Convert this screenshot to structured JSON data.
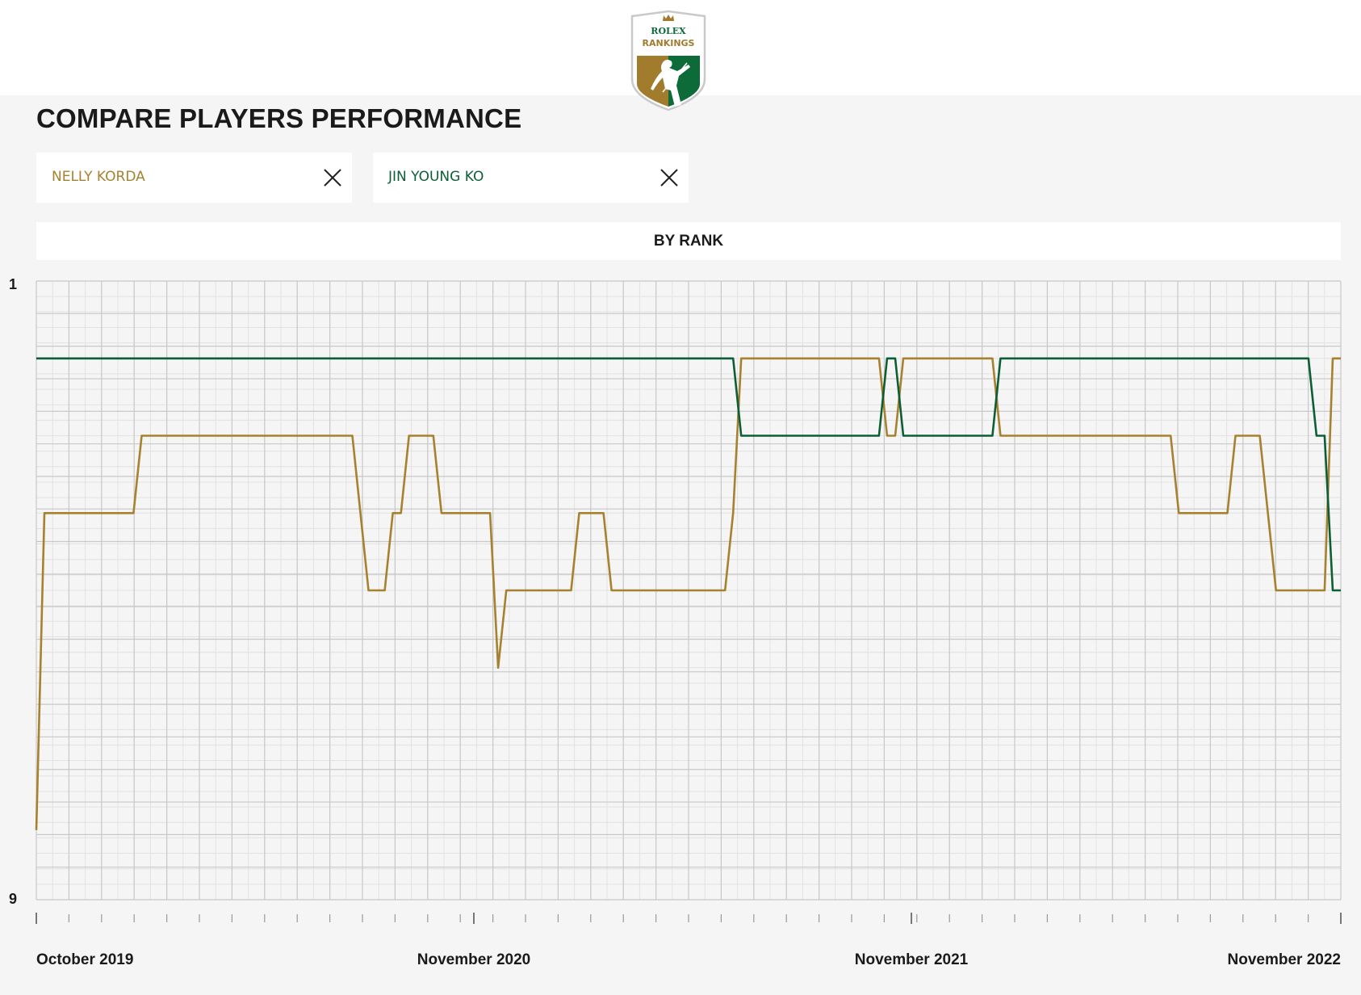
{
  "header": {
    "logo": {
      "top_text": "ROLEX",
      "bottom_text": "RANKINGS",
      "icon": "golfer-shield-icon",
      "colors": {
        "gold": "#a17c2c",
        "green": "#0d6b3a"
      }
    }
  },
  "page": {
    "title": "COMPARE PLAYERS PERFORMANCE"
  },
  "players": [
    {
      "name": "NELLY KORDA",
      "color": "#a6812f",
      "remove_icon": "close-icon"
    },
    {
      "name": "JIN YOUNG KO",
      "color": "#0d5e34",
      "remove_icon": "close-icon"
    }
  ],
  "mode": {
    "label": "BY RANK"
  },
  "chart_data": {
    "type": "line",
    "xlim": [
      "2019-10-21",
      "2022-11-21"
    ],
    "ylim": [
      9,
      1
    ],
    "y_inverted": true,
    "y_tick_labels": [
      "1",
      "9"
    ],
    "x_tick_labels": [
      {
        "date": "2019-10-21",
        "label": "October 2019"
      },
      {
        "date": "2020-11-02",
        "label": "November 2020"
      },
      {
        "date": "2021-11-15",
        "label": "November 2021"
      },
      {
        "date": "2022-11-21",
        "label": "November 2022"
      }
    ],
    "grid": true,
    "series": [
      {
        "name": "NELLY KORDA",
        "color": "#a6812f",
        "points": [
          [
            "2019-10-21",
            8.1
          ],
          [
            "2019-10-28",
            4
          ],
          [
            "2020-01-13",
            4
          ],
          [
            "2020-01-20",
            3
          ],
          [
            "2020-07-20",
            3
          ],
          [
            "2020-08-03",
            5
          ],
          [
            "2020-08-17",
            5
          ],
          [
            "2020-08-24",
            4
          ],
          [
            "2020-08-31",
            4
          ],
          [
            "2020-09-07",
            3
          ],
          [
            "2020-09-28",
            3
          ],
          [
            "2020-10-05",
            4
          ],
          [
            "2020-11-16",
            4
          ],
          [
            "2020-11-23",
            6
          ],
          [
            "2020-11-30",
            5
          ],
          [
            "2021-01-25",
            5
          ],
          [
            "2021-02-01",
            4
          ],
          [
            "2021-02-22",
            4
          ],
          [
            "2021-03-01",
            5
          ],
          [
            "2021-06-07",
            5
          ],
          [
            "2021-06-14",
            4
          ],
          [
            "2021-06-21",
            2
          ],
          [
            "2021-10-18",
            2
          ],
          [
            "2021-10-25",
            3
          ],
          [
            "2021-11-01",
            3
          ],
          [
            "2021-11-08",
            2
          ],
          [
            "2022-01-24",
            2
          ],
          [
            "2022-01-31",
            3
          ],
          [
            "2022-06-27",
            3
          ],
          [
            "2022-07-04",
            4
          ],
          [
            "2022-08-15",
            4
          ],
          [
            "2022-08-22",
            3
          ],
          [
            "2022-09-12",
            3
          ],
          [
            "2022-09-26",
            5
          ],
          [
            "2022-11-07",
            5
          ],
          [
            "2022-11-14",
            2
          ],
          [
            "2022-11-21",
            2
          ]
        ]
      },
      {
        "name": "JIN YOUNG KO",
        "color": "#0d5e34",
        "points": [
          [
            "2019-10-21",
            2
          ],
          [
            "2021-06-14",
            2
          ],
          [
            "2021-06-21",
            3
          ],
          [
            "2021-10-18",
            3
          ],
          [
            "2021-10-25",
            2
          ],
          [
            "2021-11-01",
            2
          ],
          [
            "2021-11-08",
            3
          ],
          [
            "2022-01-24",
            3
          ],
          [
            "2022-01-31",
            2
          ],
          [
            "2022-10-24",
            2
          ],
          [
            "2022-10-31",
            3
          ],
          [
            "2022-11-07",
            3
          ],
          [
            "2022-11-14",
            5
          ],
          [
            "2022-11-21",
            5
          ]
        ]
      }
    ]
  }
}
